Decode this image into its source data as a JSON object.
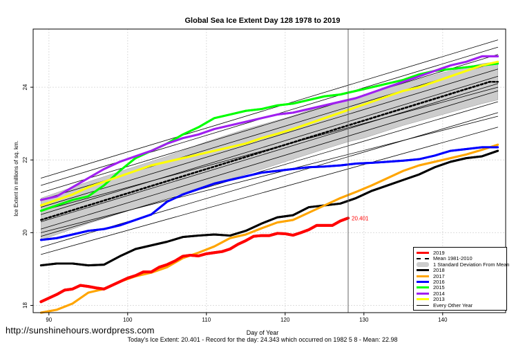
{
  "page": {
    "title": "Global Sea Ice Extent Day 128 1978 to 2019",
    "url": "http://sunshinehours.wordpress.com",
    "footer": "Today's Ice Extent: 20.401  - Record for the day: 24.343 which occurred on 1982 5 8  - Mean: 22.98"
  },
  "chart_data": {
    "type": "line",
    "title": "Global Sea Ice Extent Day 128 1978 to 2019",
    "xlabel": "Day of Year",
    "ylabel": "Ice Extent in millions of sq. km.",
    "xlim": [
      88,
      148
    ],
    "ylim": [
      17.8,
      25.6
    ],
    "xticks": [
      90,
      100,
      110,
      120,
      130,
      140
    ],
    "yticks": [
      18,
      20,
      22,
      24
    ],
    "vline_x": 128,
    "grid": true,
    "legend_position": "bottom-right",
    "end_label": "20.401",
    "band": {
      "name": "1 Standard Deviation From Mean",
      "color": "#cccccc",
      "x": [
        89,
        95,
        100,
        105,
        110,
        115,
        120,
        125,
        128,
        130,
        135,
        140,
        145,
        147
      ],
      "lower": [
        19.8,
        20.25,
        20.6,
        20.95,
        21.3,
        21.6,
        21.95,
        22.3,
        22.5,
        22.6,
        22.95,
        23.25,
        23.55,
        23.65
      ],
      "upper": [
        20.95,
        21.4,
        21.75,
        22.1,
        22.5,
        22.85,
        23.15,
        23.5,
        23.65,
        23.8,
        24.1,
        24.4,
        24.65,
        24.7
      ]
    },
    "series": [
      {
        "name": "2019",
        "color": "#ff0000",
        "width": 4,
        "dash": "",
        "x": [
          89,
          90,
          91,
          92,
          93,
          94,
          95,
          96,
          97,
          98,
          99,
          100,
          101,
          102,
          103,
          104,
          105,
          106,
          107,
          108,
          109,
          110,
          111,
          112,
          113,
          114,
          115,
          116,
          117,
          118,
          119,
          120,
          121,
          122,
          123,
          124,
          125,
          126,
          127,
          128
        ],
        "values": [
          18.1,
          18.2,
          18.3,
          18.42,
          18.45,
          18.55,
          18.52,
          18.48,
          18.45,
          18.55,
          18.65,
          18.75,
          18.82,
          18.92,
          18.92,
          19.05,
          19.12,
          19.22,
          19.35,
          19.38,
          19.36,
          19.42,
          19.45,
          19.48,
          19.55,
          19.68,
          19.78,
          19.9,
          19.92,
          19.92,
          19.98,
          19.97,
          19.93,
          20.0,
          20.08,
          20.2,
          20.2,
          20.2,
          20.32,
          20.401
        ]
      },
      {
        "name": "Mean 1981-2010",
        "color": "#000000",
        "width": 2.5,
        "dash": "3,3",
        "x": [
          89,
          92,
          95,
          98,
          101,
          104,
          107,
          110,
          113,
          116,
          119,
          122,
          125,
          128,
          131,
          134,
          137,
          140,
          143,
          146,
          147
        ],
        "values": [
          20.35,
          20.55,
          20.75,
          20.95,
          21.15,
          21.35,
          21.55,
          21.75,
          21.95,
          22.15,
          22.35,
          22.55,
          22.75,
          22.95,
          23.15,
          23.35,
          23.55,
          23.75,
          23.95,
          24.15,
          24.15
        ]
      },
      {
        "name": "2018",
        "color": "#000000",
        "width": 3,
        "dash": "",
        "x": [
          89,
          91,
          93,
          95,
          97,
          99,
          101,
          103,
          105,
          107,
          109,
          111,
          113,
          115,
          117,
          119,
          121,
          123,
          125,
          127,
          129,
          131,
          133,
          135,
          137,
          139,
          141,
          143,
          145,
          147
        ],
        "values": [
          19.1,
          19.15,
          19.15,
          19.1,
          19.12,
          19.35,
          19.55,
          19.65,
          19.75,
          19.88,
          19.92,
          19.95,
          19.92,
          20.05,
          20.25,
          20.42,
          20.48,
          20.7,
          20.75,
          20.8,
          20.95,
          21.15,
          21.3,
          21.45,
          21.6,
          21.8,
          21.95,
          22.05,
          22.1,
          22.25
        ]
      },
      {
        "name": "2017",
        "color": "#ffa500",
        "width": 3,
        "dash": "",
        "x": [
          89,
          91,
          93,
          95,
          97,
          99,
          101,
          103,
          105,
          107,
          109,
          111,
          113,
          115,
          117,
          119,
          121,
          123,
          125,
          127,
          129,
          131,
          133,
          135,
          137,
          139,
          141,
          143,
          145,
          147
        ],
        "values": [
          17.8,
          17.88,
          18.05,
          18.35,
          18.45,
          18.65,
          18.8,
          18.9,
          19.05,
          19.3,
          19.45,
          19.62,
          19.85,
          19.95,
          20.12,
          20.28,
          20.35,
          20.55,
          20.75,
          20.95,
          21.12,
          21.3,
          21.5,
          21.7,
          21.85,
          21.95,
          22.05,
          22.15,
          22.28,
          22.42
        ]
      },
      {
        "name": "2016",
        "color": "#0000ff",
        "width": 3,
        "dash": "",
        "x": [
          89,
          91,
          93,
          95,
          97,
          99,
          101,
          103,
          105,
          107,
          109,
          111,
          113,
          115,
          117,
          119,
          121,
          123,
          125,
          127,
          129,
          131,
          133,
          135,
          137,
          139,
          141,
          143,
          145,
          147
        ],
        "values": [
          19.8,
          19.85,
          19.95,
          20.05,
          20.1,
          20.2,
          20.35,
          20.5,
          20.85,
          21.05,
          21.2,
          21.35,
          21.45,
          21.55,
          21.65,
          21.7,
          21.75,
          21.8,
          21.82,
          21.85,
          21.9,
          21.92,
          21.95,
          21.98,
          22.02,
          22.12,
          22.25,
          22.3,
          22.35,
          22.35
        ]
      },
      {
        "name": "2015",
        "color": "#00ff00",
        "width": 3,
        "dash": "",
        "x": [
          89,
          91,
          93,
          95,
          97,
          99,
          101,
          103,
          105,
          107,
          109,
          111,
          113,
          115,
          117,
          119,
          121,
          123,
          125,
          127,
          129,
          131,
          133,
          135,
          137,
          139,
          141,
          143,
          145,
          147
        ],
        "values": [
          20.6,
          20.75,
          20.9,
          21.0,
          21.3,
          21.7,
          22.05,
          22.25,
          22.45,
          22.7,
          22.9,
          23.15,
          23.25,
          23.35,
          23.4,
          23.5,
          23.55,
          23.65,
          23.75,
          23.8,
          23.9,
          24.0,
          24.1,
          24.2,
          24.35,
          24.45,
          24.5,
          24.55,
          24.6,
          24.65
        ]
      },
      {
        "name": "2014",
        "color": "#a020f0",
        "width": 3,
        "dash": "",
        "x": [
          89,
          91,
          93,
          95,
          97,
          99,
          101,
          103,
          105,
          107,
          109,
          111,
          113,
          115,
          117,
          119,
          121,
          123,
          125,
          127,
          129,
          131,
          133,
          135,
          137,
          139,
          141,
          143,
          145,
          147
        ],
        "values": [
          20.9,
          21.0,
          21.25,
          21.5,
          21.75,
          21.95,
          22.1,
          22.25,
          22.45,
          22.6,
          22.7,
          22.85,
          22.95,
          23.05,
          23.15,
          23.25,
          23.3,
          23.4,
          23.5,
          23.6,
          23.7,
          23.85,
          24.0,
          24.15,
          24.3,
          24.45,
          24.6,
          24.7,
          24.85,
          24.85
        ]
      },
      {
        "name": "2013",
        "color": "#ffff00",
        "width": 3,
        "dash": "",
        "x": [
          89,
          91,
          93,
          95,
          97,
          99,
          101,
          103,
          105,
          107,
          109,
          111,
          113,
          115,
          117,
          119,
          121,
          123,
          125,
          127,
          129,
          131,
          133,
          135,
          137,
          139,
          141,
          143,
          145,
          147
        ],
        "values": [
          20.75,
          20.9,
          21.05,
          21.25,
          21.4,
          21.55,
          21.7,
          21.85,
          21.95,
          22.05,
          22.15,
          22.25,
          22.35,
          22.45,
          22.6,
          22.72,
          22.85,
          23.0,
          23.15,
          23.3,
          23.45,
          23.6,
          23.75,
          23.9,
          24.0,
          24.15,
          24.3,
          24.45,
          24.6,
          24.7
        ]
      },
      {
        "name": "Every Other Year",
        "color": "#000000",
        "width": 0.8,
        "dash": "",
        "legend": true,
        "x": [
          89,
          147
        ],
        "values": [
          19.6,
          23.3
        ]
      },
      {
        "name": "",
        "color": "#000000",
        "width": 0.8,
        "dash": "",
        "x": [
          89,
          147
        ],
        "values": [
          19.9,
          23.6
        ]
      },
      {
        "name": "",
        "color": "#000000",
        "width": 0.8,
        "dash": "",
        "x": [
          89,
          147
        ],
        "values": [
          20.1,
          23.9
        ]
      },
      {
        "name": "",
        "color": "#000000",
        "width": 0.8,
        "dash": "",
        "x": [
          89,
          147
        ],
        "values": [
          20.3,
          24.1
        ]
      },
      {
        "name": "",
        "color": "#000000",
        "width": 0.8,
        "dash": "",
        "x": [
          89,
          147
        ],
        "values": [
          20.5,
          24.3
        ]
      },
      {
        "name": "",
        "color": "#000000",
        "width": 0.8,
        "dash": "",
        "x": [
          89,
          147
        ],
        "values": [
          20.7,
          24.5
        ]
      },
      {
        "name": "",
        "color": "#000000",
        "width": 0.8,
        "dash": "",
        "x": [
          89,
          147
        ],
        "values": [
          20.9,
          24.7
        ]
      },
      {
        "name": "",
        "color": "#000000",
        "width": 0.8,
        "dash": "",
        "x": [
          89,
          147
        ],
        "values": [
          21.1,
          24.9
        ]
      },
      {
        "name": "",
        "color": "#000000",
        "width": 0.8,
        "dash": "",
        "x": [
          89,
          147
        ],
        "values": [
          21.3,
          25.1
        ]
      },
      {
        "name": "",
        "color": "#000000",
        "width": 0.8,
        "dash": "",
        "x": [
          89,
          147
        ],
        "values": [
          19.4,
          22.9
        ]
      },
      {
        "name": "",
        "color": "#000000",
        "width": 0.8,
        "dash": "",
        "x": [
          89,
          147
        ],
        "values": [
          20.0,
          23.2
        ]
      },
      {
        "name": "",
        "color": "#000000",
        "width": 0.8,
        "dash": "",
        "x": [
          89,
          147
        ],
        "values": [
          20.6,
          24.0
        ]
      },
      {
        "name": "",
        "color": "#000000",
        "width": 0.8,
        "dash": "",
        "x": [
          89,
          147
        ],
        "values": [
          21.5,
          25.3
        ]
      }
    ]
  }
}
